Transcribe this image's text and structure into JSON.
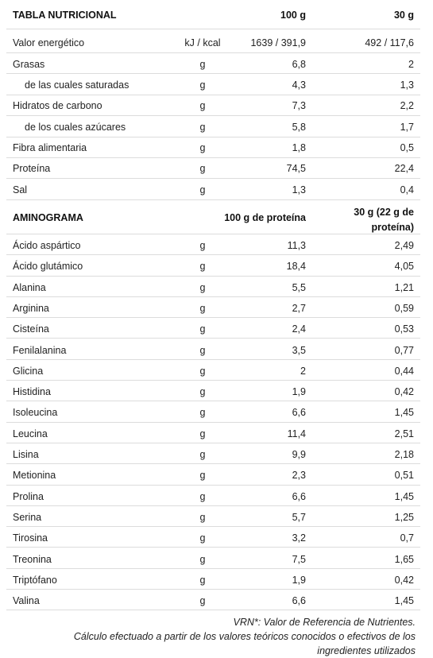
{
  "nutrition": {
    "header": {
      "title": "TABLA NUTRICIONAL",
      "col_100g": "100 g",
      "col_30g": "30 g"
    },
    "rows": [
      {
        "label": "Valor energético",
        "unit": "kJ / kcal",
        "v100": "1639 / 391,9",
        "v30": "492 / 117,6"
      },
      {
        "label": "Grasas",
        "unit": "g",
        "v100": "6,8",
        "v30": "2"
      },
      {
        "label": "de las cuales saturadas",
        "unit": "g",
        "v100": "4,3",
        "v30": "1,3"
      },
      {
        "label": "Hidratos de carbono",
        "unit": "g",
        "v100": "7,3",
        "v30": "2,2"
      },
      {
        "label": "de los cuales azúcares",
        "unit": "g",
        "v100": "5,8",
        "v30": "1,7"
      },
      {
        "label": "Fibra alimentaria",
        "unit": "g",
        "v100": "1,8",
        "v30": "0,5"
      },
      {
        "label": "Proteína",
        "unit": "g",
        "v100": "74,5",
        "v30": "22,4"
      },
      {
        "label": "Sal",
        "unit": "g",
        "v100": "1,3",
        "v30": "0,4"
      }
    ]
  },
  "aminogram": {
    "header": {
      "title": "AMINOGRAMA",
      "col_100g": "100 g de proteína",
      "col_30g": "30 g  (22 g de proteína)"
    },
    "rows": [
      {
        "label": "Ácido aspártico",
        "unit": "g",
        "v100": "11,3",
        "v30": "2,49"
      },
      {
        "label": "Ácido glutámico",
        "unit": "g",
        "v100": "18,4",
        "v30": "4,05"
      },
      {
        "label": "Alanina",
        "unit": "g",
        "v100": "5,5",
        "v30": "1,21"
      },
      {
        "label": "Arginina",
        "unit": "g",
        "v100": "2,7",
        "v30": "0,59"
      },
      {
        "label": "Cisteína",
        "unit": "g",
        "v100": "2,4",
        "v30": "0,53"
      },
      {
        "label": "Fenilalanina",
        "unit": "g",
        "v100": "3,5",
        "v30": "0,77"
      },
      {
        "label": "Glicina",
        "unit": "g",
        "v100": "2",
        "v30": "0,44"
      },
      {
        "label": "Histidina",
        "unit": "g",
        "v100": "1,9",
        "v30": "0,42"
      },
      {
        "label": "Isoleucina",
        "unit": "g",
        "v100": "6,6",
        "v30": "1,45"
      },
      {
        "label": "Leucina",
        "unit": "g",
        "v100": "11,4",
        "v30": "2,51"
      },
      {
        "label": "Lisina",
        "unit": "g",
        "v100": "9,9",
        "v30": "2,18"
      },
      {
        "label": "Metionina",
        "unit": "g",
        "v100": "2,3",
        "v30": "0,51"
      },
      {
        "label": "Prolina",
        "unit": "g",
        "v100": "6,6",
        "v30": "1,45"
      },
      {
        "label": "Serina",
        "unit": "g",
        "v100": "5,7",
        "v30": "1,25"
      },
      {
        "label": "Tirosina",
        "unit": "g",
        "v100": "3,2",
        "v30": "0,7"
      },
      {
        "label": "Treonina",
        "unit": "g",
        "v100": "7,5",
        "v30": "1,65"
      },
      {
        "label": "Triptófano",
        "unit": "g",
        "v100": "1,9",
        "v30": "0,42"
      },
      {
        "label": "Valina",
        "unit": "g",
        "v100": "6,6",
        "v30": "1,45"
      }
    ]
  },
  "footer": {
    "line1": "VRN*: Valor de Referencia de Nutrientes.",
    "line2": "Cálculo efectuado a partir de los valores teóricos conocidos o efectivos de los",
    "line3": "ingredientes utilizados"
  }
}
